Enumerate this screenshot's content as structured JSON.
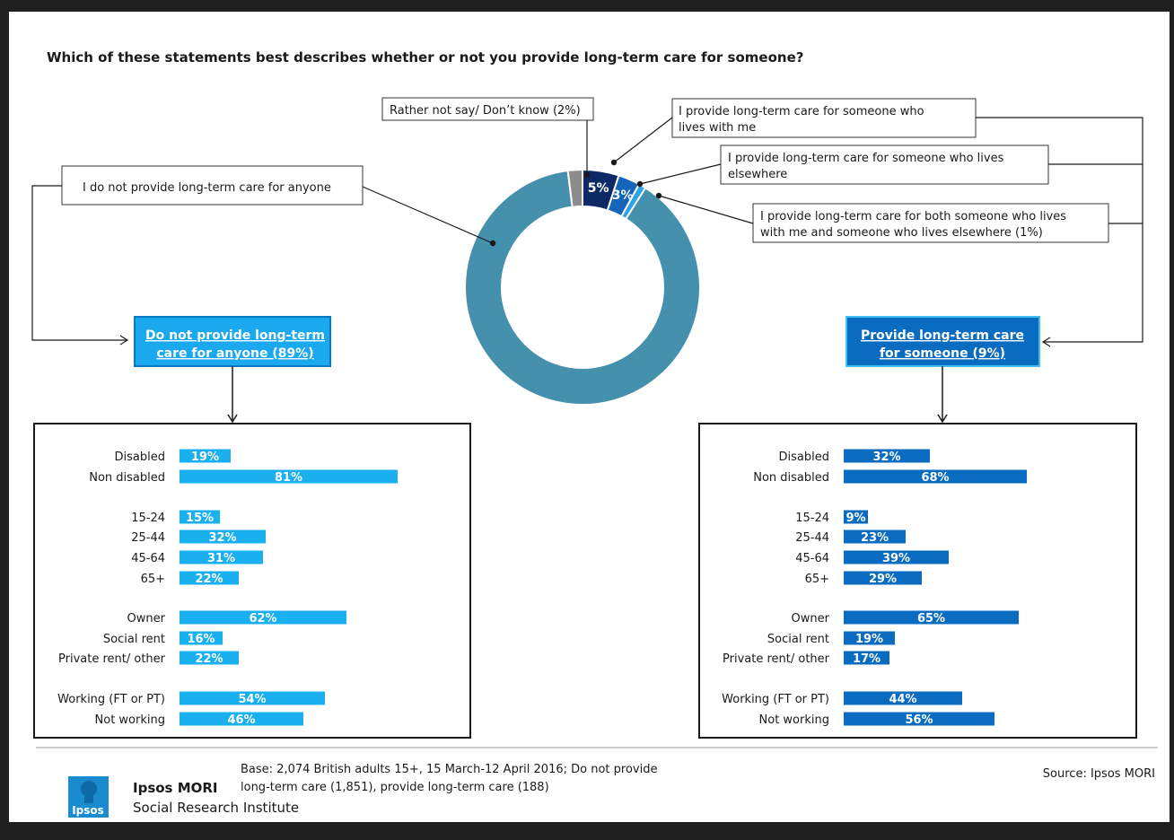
{
  "question": "Which of these statements best describes whether or not you provide long-term care for someone?",
  "callouts": {
    "rather_not_say": "Rather not say/ Don’t know (2%)",
    "lives_with_me_1": "I provide long-term care for someone who",
    "lives_with_me_2": "lives with me",
    "lives_elsewhere_1": "I provide long-term care for someone who lives",
    "lives_elsewhere_2": "elsewhere",
    "both_1": "I provide long-term care for both someone who lives",
    "both_2": "with me and someone who lives elsewhere (1%)",
    "not_provide": "I do not provide long-term care for anyone"
  },
  "group_boxes": {
    "left_1": "Do not provide long-term",
    "left_2": "care for anyone (89%)",
    "right_1": "Provide long-term care",
    "right_2": "for someone (9%)"
  },
  "colors": {
    "not_provide": "#4490ad",
    "dont_know": "#8c8c8c",
    "lives_with_me": "#0d2a66",
    "lives_elsewhere": "#1565b8",
    "both": "#2aa6e6",
    "left_bars": "#1ab0f0",
    "right_bars": "#0a6cc0"
  },
  "chart_data": [
    {
      "type": "pie",
      "variant": "donut",
      "labels": [
        "I provide long-term care for someone who lives with me",
        "I provide long-term care for someone who lives elsewhere",
        "I provide long-term care for both someone who lives with me and someone who lives elsewhere (1%)",
        "I do not provide long-term care for anyone",
        "Rather not say/ Don’t know (2%)"
      ],
      "values": [
        5,
        3,
        1,
        89,
        2
      ],
      "data_labels": [
        "5%",
        "3%",
        "",
        "89%",
        ""
      ]
    },
    {
      "type": "bar",
      "orientation": "horizontal",
      "title": "Do not provide long-term care for anyone (89%)",
      "categories": [
        "Disabled",
        "Non disabled",
        "15-24",
        "25-44",
        "45-64",
        "65+",
        "Owner",
        "Social rent",
        "Private rent/ other",
        "Working (FT or PT)",
        "Not working"
      ],
      "values": [
        19,
        81,
        15,
        32,
        31,
        22,
        62,
        16,
        22,
        54,
        46
      ],
      "data_labels": [
        "19%",
        "81%",
        "15%",
        "32%",
        "31%",
        "22%",
        "62%",
        "16%",
        "22%",
        "54%",
        "46%"
      ]
    },
    {
      "type": "bar",
      "orientation": "horizontal",
      "title": "Provide long-term care for someone (9%)",
      "categories": [
        "Disabled",
        "Non disabled",
        "15-24",
        "25-44",
        "45-64",
        "65+",
        "Owner",
        "Social rent",
        "Private rent/ other",
        "Working (FT or PT)",
        "Not working"
      ],
      "values": [
        32,
        68,
        9,
        23,
        39,
        29,
        65,
        19,
        17,
        44,
        56
      ],
      "data_labels": [
        "32%",
        "68%",
        "9%",
        "23%",
        "39%",
        "29%",
        "65%",
        "19%",
        "17%",
        "44%",
        "56%"
      ]
    }
  ],
  "footer": {
    "base_1": "Base: 2,074 British adults 15+, 15 March-12 April 2016; Do not provide",
    "base_2": "long-term care (1,851), provide long-term care (188)",
    "source": "Source: Ipsos MORI",
    "brand": "Ipsos MORI",
    "brand_sub": "Social Research Institute",
    "logo_text": "Ipsos"
  }
}
